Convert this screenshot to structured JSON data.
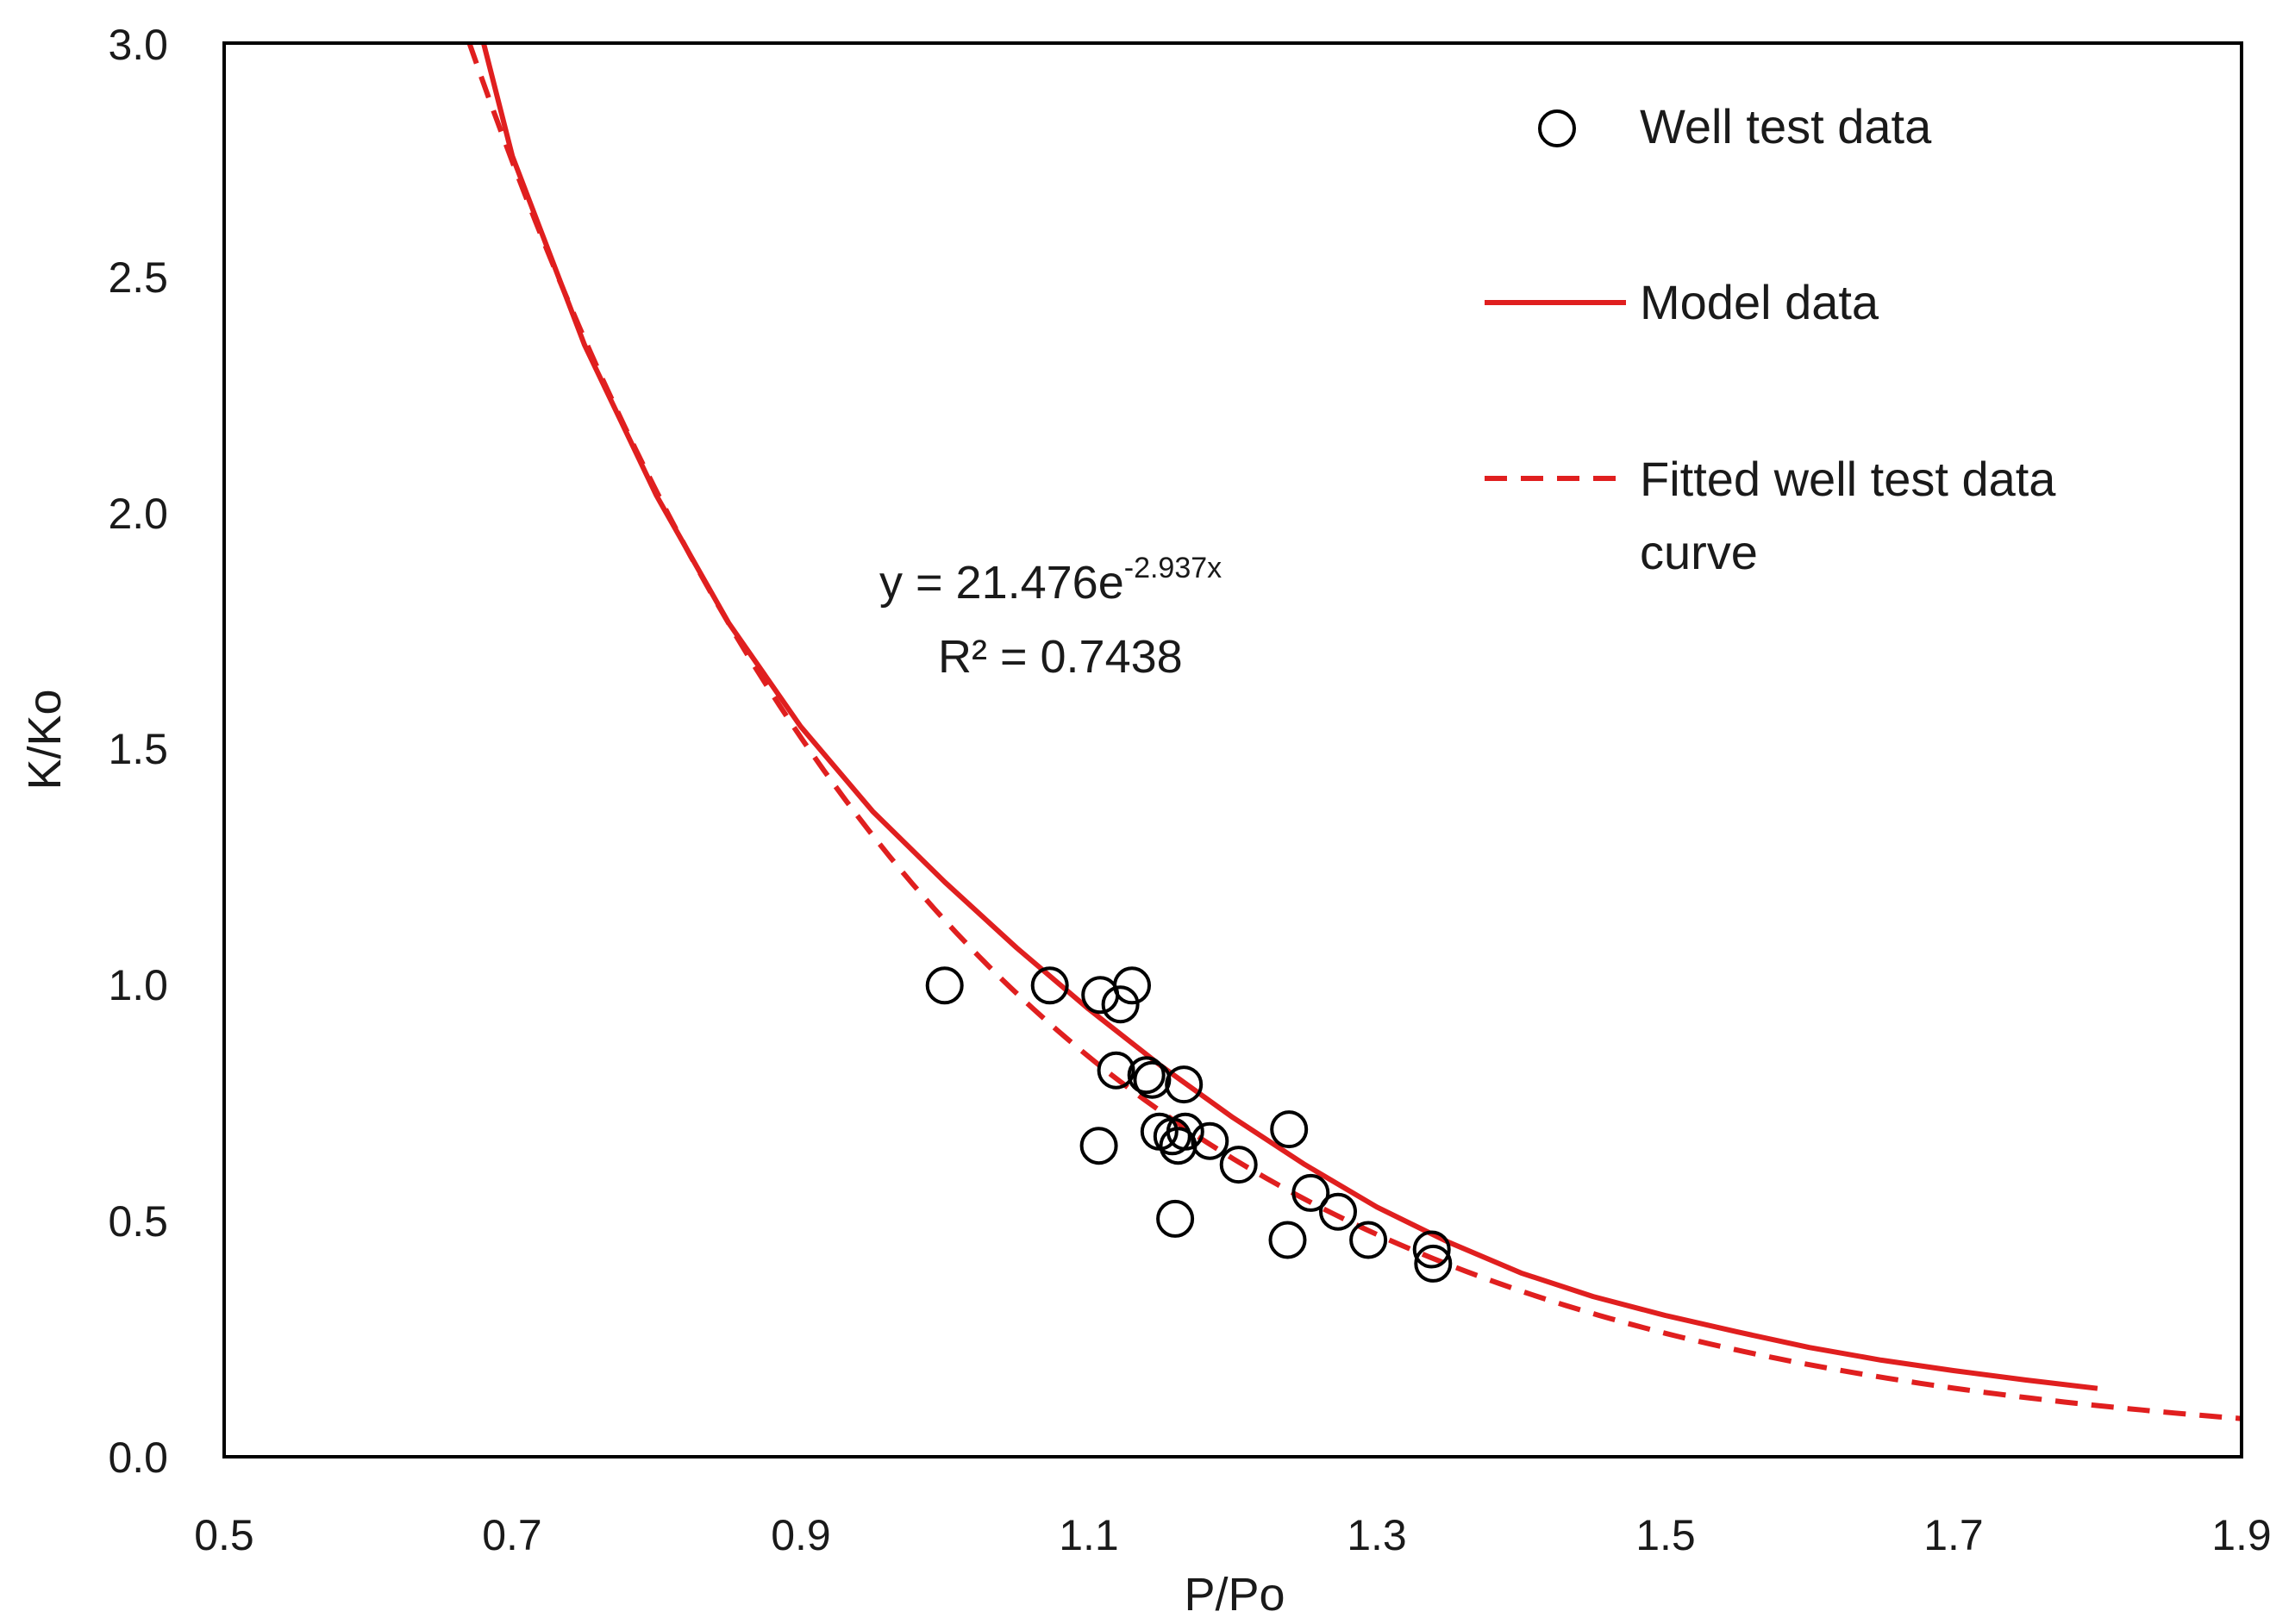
{
  "chart_data": {
    "type": "scatter",
    "xlabel": "P/Po",
    "ylabel": "K/Ko",
    "xlim": [
      0.5,
      1.9
    ],
    "ylim": [
      0.0,
      3.0
    ],
    "x_ticks": [
      "0.5",
      "0.7",
      "0.9",
      "1.1",
      "1.3",
      "1.5",
      "1.7",
      "1.9"
    ],
    "y_ticks": [
      "0.0",
      "0.5",
      "1.0",
      "1.5",
      "2.0",
      "2.5",
      "3.0"
    ],
    "grid": false,
    "legend_position": "top-right",
    "series": [
      {
        "name": "Well test data",
        "type": "scatter",
        "marker": "open-circle",
        "color": "#000000",
        "points": [
          {
            "x": 1.0,
            "y": 1.0
          },
          {
            "x": 1.073,
            "y": 1.0
          },
          {
            "x": 1.108,
            "y": 0.98
          },
          {
            "x": 1.122,
            "y": 0.96
          },
          {
            "x": 1.13,
            "y": 1.0
          },
          {
            "x": 1.119,
            "y": 0.82
          },
          {
            "x": 1.14,
            "y": 0.81
          },
          {
            "x": 1.144,
            "y": 0.8
          },
          {
            "x": 1.166,
            "y": 0.79
          },
          {
            "x": 1.107,
            "y": 0.66
          },
          {
            "x": 1.149,
            "y": 0.69
          },
          {
            "x": 1.158,
            "y": 0.68
          },
          {
            "x": 1.162,
            "y": 0.66
          },
          {
            "x": 1.167,
            "y": 0.69
          },
          {
            "x": 1.184,
            "y": 0.67
          },
          {
            "x": 1.204,
            "y": 0.62
          },
          {
            "x": 1.16,
            "y": 0.505
          },
          {
            "x": 1.239,
            "y": 0.695
          },
          {
            "x": 1.254,
            "y": 0.56
          },
          {
            "x": 1.273,
            "y": 0.52
          },
          {
            "x": 1.238,
            "y": 0.46
          },
          {
            "x": 1.294,
            "y": 0.46
          },
          {
            "x": 1.338,
            "y": 0.44
          },
          {
            "x": 1.339,
            "y": 0.41
          }
        ]
      },
      {
        "name": "Model data",
        "type": "line",
        "style": "solid",
        "color": "#e01f1f",
        "x": [
          0.68,
          0.7,
          0.75,
          0.8,
          0.85,
          0.9,
          0.95,
          1.0,
          1.05,
          1.1,
          1.15,
          1.2,
          1.25,
          1.3,
          1.35,
          1.4,
          1.45,
          1.5,
          1.55,
          1.6,
          1.65,
          1.7,
          1.75,
          1.8
        ],
        "y": [
          3.0,
          2.76,
          2.36,
          2.04,
          1.77,
          1.55,
          1.37,
          1.22,
          1.08,
          0.95,
          0.83,
          0.72,
          0.62,
          0.53,
          0.455,
          0.39,
          0.34,
          0.3,
          0.265,
          0.232,
          0.205,
          0.183,
          0.163,
          0.145
        ]
      },
      {
        "name": "Fitted well test data curve",
        "type": "line",
        "style": "dashed",
        "color": "#e01f1f",
        "equation": {
          "a": 21.476,
          "b": -2.937
        },
        "x_range": [
          0.67,
          1.9
        ]
      }
    ],
    "annotation": {
      "equation_prefix": "y = 21.476e",
      "equation_exponent": "-2.937x",
      "r_squared": "R² = 0.7438"
    }
  },
  "legend": {
    "items": [
      {
        "label": "Well test data"
      },
      {
        "label": "Model data"
      },
      {
        "label_line1": "Fitted well test data",
        "label_line2": "curve"
      }
    ]
  }
}
